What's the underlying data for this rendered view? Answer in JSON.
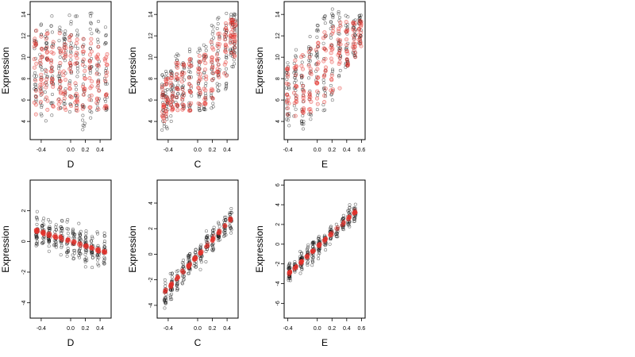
{
  "chart_data": [
    {
      "type": "scatter",
      "xlabel": "D",
      "ylabel": "Expression",
      "xlim": [
        -0.55,
        0.55
      ],
      "ylim": [
        2.3,
        15.2
      ],
      "xticks": [
        "-0.4",
        "0.0",
        "0.2",
        "0.4"
      ],
      "yticks": [
        "4",
        "6",
        "8",
        "10",
        "12",
        "14"
      ],
      "series": [
        {
          "style": "observed",
          "color": "#000000",
          "bands": [
            [
              -0.48,
              4.5,
              12.5
            ],
            [
              -0.4,
              4.5,
              13.5
            ],
            [
              -0.33,
              4,
              12.5
            ],
            [
              -0.25,
              4.5,
              14
            ],
            [
              -0.15,
              5,
              13
            ],
            [
              -0.08,
              5,
              12.5
            ],
            [
              0,
              4.5,
              14
            ],
            [
              0.08,
              5,
              14
            ],
            [
              0.18,
              2.8,
              12.5
            ],
            [
              0.27,
              4,
              14.5
            ],
            [
              0.37,
              5,
              14
            ],
            [
              0.48,
              5,
              13
            ]
          ]
        },
        {
          "style": "fitted",
          "color": "#e6322d",
          "bands": [
            [
              -0.48,
              4.5,
              12.5
            ],
            [
              -0.4,
              5,
              12
            ],
            [
              -0.33,
              5,
              12.5
            ],
            [
              -0.25,
              5,
              12
            ],
            [
              -0.15,
              5,
              12.5
            ],
            [
              -0.08,
              5,
              12
            ],
            [
              0,
              5,
              12.5
            ],
            [
              0.08,
              5,
              12.5
            ],
            [
              0.18,
              5,
              12.5
            ],
            [
              0.27,
              5,
              12
            ],
            [
              0.37,
              5,
              11.5
            ],
            [
              0.48,
              5,
              10.5
            ]
          ]
        }
      ]
    },
    {
      "type": "scatter",
      "xlabel": "C",
      "ylabel": "Expression",
      "xlim": [
        -0.55,
        0.55
      ],
      "ylim": [
        2.3,
        15.2
      ],
      "xticks": [
        "-0.4",
        "0.0",
        "0.2",
        "0.4"
      ],
      "yticks": [
        "4",
        "6",
        "8",
        "10",
        "12",
        "14"
      ],
      "series": [
        {
          "style": "observed",
          "color": "#000000",
          "bands": [
            [
              -0.47,
              3,
              8.5
            ],
            [
              -0.42,
              3,
              9
            ],
            [
              -0.35,
              4,
              9.5
            ],
            [
              -0.28,
              5,
              10.5
            ],
            [
              -0.2,
              5,
              10
            ],
            [
              -0.1,
              5,
              11
            ],
            [
              0.02,
              5,
              11
            ],
            [
              0.1,
              5,
              11.5
            ],
            [
              0.2,
              5,
              13
            ],
            [
              0.28,
              6,
              14
            ],
            [
              0.38,
              7,
              15
            ],
            [
              0.46,
              9,
              14.5
            ],
            [
              0.5,
              9,
              14.5
            ]
          ]
        },
        {
          "style": "fitted",
          "color": "#e6322d",
          "bands": [
            [
              -0.47,
              4,
              8
            ],
            [
              -0.42,
              4.5,
              8.5
            ],
            [
              -0.35,
              5,
              8.5
            ],
            [
              -0.28,
              5,
              9.5
            ],
            [
              -0.2,
              5,
              9.5
            ],
            [
              -0.1,
              5,
              10
            ],
            [
              0.02,
              5,
              10.5
            ],
            [
              0.1,
              5.5,
              10.5
            ],
            [
              0.2,
              6,
              11.5
            ],
            [
              0.28,
              7,
              12.5
            ],
            [
              0.38,
              8,
              13.5
            ],
            [
              0.46,
              10,
              14
            ],
            [
              0.5,
              10,
              14
            ]
          ]
        }
      ]
    },
    {
      "type": "scatter",
      "xlabel": "E",
      "ylabel": "Expression",
      "xlim": [
        -0.45,
        0.65
      ],
      "ylim": [
        2.3,
        15.2
      ],
      "xticks": [
        "-0.4",
        "0.0",
        "0.2",
        "0.4",
        "0.6"
      ],
      "yticks": [
        "4",
        "6",
        "8",
        "10",
        "12",
        "14"
      ],
      "series": [
        {
          "style": "observed",
          "color": "#000000",
          "bands": [
            [
              -0.4,
              3,
              9.5
            ],
            [
              -0.3,
              3.5,
              11
            ],
            [
              -0.2,
              3,
              11.5
            ],
            [
              -0.1,
              4,
              12
            ],
            [
              0,
              5,
              13
            ],
            [
              0.1,
              5,
              14
            ],
            [
              0.2,
              5.5,
              14.5
            ],
            [
              0.3,
              8,
              14.5
            ],
            [
              0.4,
              9,
              14
            ],
            [
              0.5,
              10,
              13.5
            ],
            [
              0.58,
              11,
              14
            ]
          ]
        },
        {
          "style": "fitted",
          "color": "#e6322d",
          "bands": [
            [
              -0.4,
              4,
              9
            ],
            [
              -0.3,
              4.5,
              10
            ],
            [
              -0.2,
              4,
              11
            ],
            [
              -0.1,
              4.5,
              11.5
            ],
            [
              0,
              5,
              12
            ],
            [
              0.1,
              5,
              12.5
            ],
            [
              0.2,
              6,
              13
            ],
            [
              0.3,
              7,
              13.5
            ],
            [
              0.4,
              9,
              13.5
            ],
            [
              0.5,
              10,
              13.5
            ],
            [
              0.58,
              11,
              13.5
            ]
          ]
        }
      ]
    },
    {
      "type": "scatter",
      "xlabel": "D",
      "ylabel": "Expression",
      "xlim": [
        -0.55,
        0.55
      ],
      "ylim": [
        -5,
        4
      ],
      "xticks": [
        "-0.4",
        "0.0",
        "0.2",
        "0.4"
      ],
      "yticks": [
        "-4",
        "-2",
        "0",
        "2"
      ],
      "series": [
        {
          "style": "observed",
          "color": "#000000",
          "spread": 1.1,
          "trend": [
            [
              -0.5,
              0.75
            ],
            [
              0.5,
              -0.75
            ]
          ],
          "range": [
            -0.5,
            0.5
          ]
        },
        {
          "style": "fitted",
          "color": "#e6322d",
          "spread": 0.12,
          "trend": [
            [
              -0.5,
              0.75
            ],
            [
              0.5,
              -0.75
            ]
          ],
          "range": [
            -0.5,
            0.5
          ]
        }
      ]
    },
    {
      "type": "scatter",
      "xlabel": "C",
      "ylabel": "Expression",
      "xlim": [
        -0.55,
        0.55
      ],
      "ylim": [
        -5,
        5.8
      ],
      "xticks": [
        "-0.4",
        "0.0",
        "0.2",
        "0.4"
      ],
      "yticks": [
        "-4",
        "-2",
        "0",
        "2",
        "4"
      ],
      "series": [
        {
          "style": "observed",
          "color": "#000000",
          "spread": 1.0,
          "trend": [
            [
              -0.47,
              -3.1
            ],
            [
              0.48,
              2.9
            ]
          ],
          "range": [
            -0.48,
            0.49
          ]
        },
        {
          "style": "fitted",
          "color": "#e6322d",
          "spread": 0.15,
          "trend": [
            [
              -0.47,
              -3.1
            ],
            [
              0.48,
              2.9
            ]
          ],
          "range": [
            -0.48,
            0.49
          ]
        }
      ]
    },
    {
      "type": "scatter",
      "xlabel": "E",
      "ylabel": "Expression",
      "xlim": [
        -0.45,
        0.65
      ],
      "ylim": [
        -7.5,
        6.5
      ],
      "xticks": [
        "-0.4",
        "0.0",
        "0.2",
        "0.4",
        "0.6"
      ],
      "yticks": [
        "-6",
        "-4",
        "-2",
        "0",
        "2",
        "4",
        "6"
      ],
      "series": [
        {
          "style": "observed",
          "color": "#000000",
          "spread": 1.0,
          "trend": [
            [
              -0.42,
              -3.2
            ],
            [
              0.55,
              3.5
            ]
          ],
          "range": [
            -0.42,
            0.55
          ]
        },
        {
          "style": "fitted",
          "color": "#e6322d",
          "spread": 0.15,
          "trend": [
            [
              -0.42,
              -3.2
            ],
            [
              0.55,
              3.5
            ]
          ],
          "range": [
            -0.42,
            0.55
          ]
        }
      ]
    }
  ]
}
